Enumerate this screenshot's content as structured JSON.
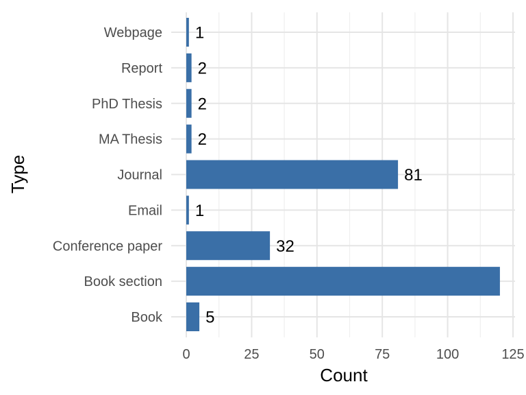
{
  "chart_data": {
    "type": "bar",
    "orientation": "horizontal",
    "categories": [
      "Book",
      "Book section",
      "Conference paper",
      "Email",
      "Journal",
      "MA Thesis",
      "PhD Thesis",
      "Report",
      "Webpage"
    ],
    "values": [
      5,
      120,
      32,
      1,
      81,
      2,
      2,
      2,
      1
    ],
    "data_labels": [
      "5",
      "",
      "32",
      "1",
      "81",
      "2",
      "2",
      "2",
      "1"
    ],
    "xlabel": "Count",
    "ylabel": "Type",
    "xlim": [
      0,
      125
    ],
    "xticks": [
      0,
      25,
      50,
      75,
      100,
      125
    ],
    "grid": true,
    "bar_color": "#3a6fa7"
  }
}
